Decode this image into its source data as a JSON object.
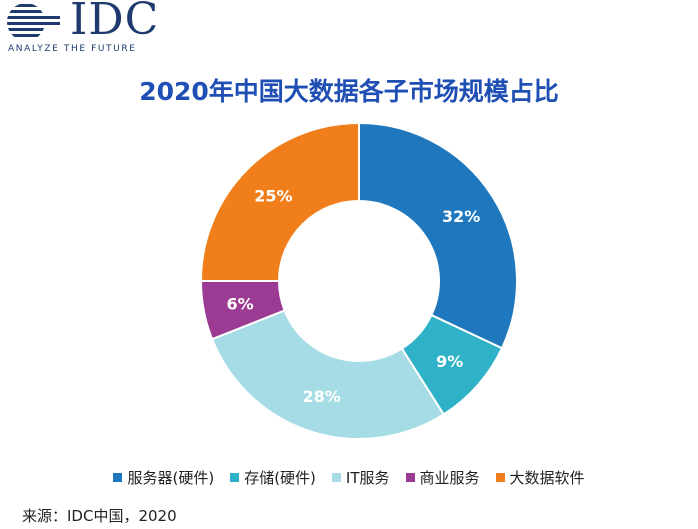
{
  "logo": {
    "brand": "IDC",
    "tagline": "ANALYZE THE FUTURE",
    "color": "#1f3a6e"
  },
  "source": "来源：IDC中国，2020",
  "chart_data": {
    "type": "pie",
    "title": "2020年中国大数据各子市场规模占比",
    "donut": true,
    "legend_placement": "bottom",
    "slices": [
      {
        "name": "服务器(硬件)",
        "value": 32,
        "label": "32%",
        "color": "#1f78bd"
      },
      {
        "name": "存储(硬件)",
        "value": 9,
        "label": "9%",
        "color": "#2fb2c8"
      },
      {
        "name": "IT服务",
        "value": 28,
        "label": "28%",
        "color": "#a6dce6"
      },
      {
        "name": "商业服务",
        "value": 6,
        "label": "6%",
        "color": "#9b3b93"
      },
      {
        "name": "大数据软件",
        "value": 25,
        "label": "25%",
        "color": "#f07f1b"
      }
    ]
  }
}
